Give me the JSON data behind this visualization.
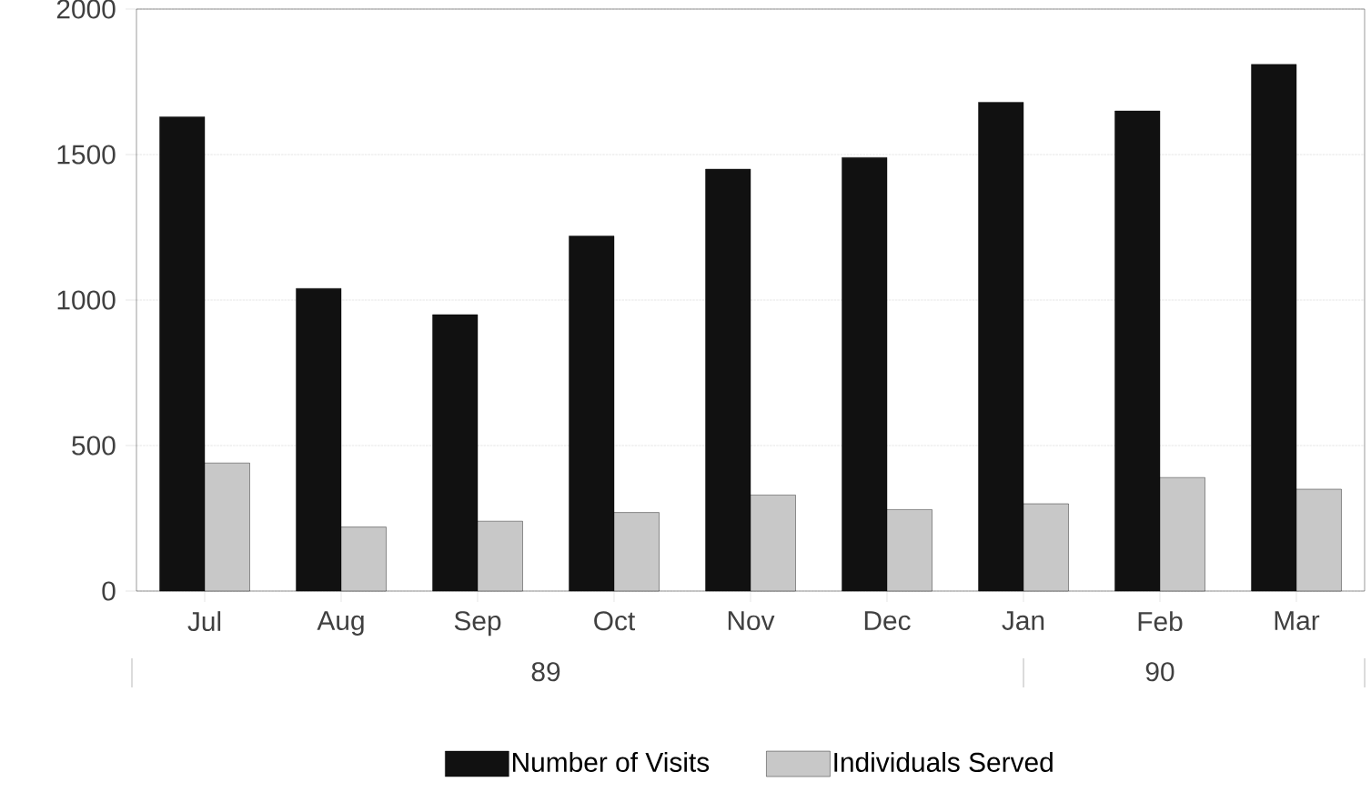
{
  "chart_data": {
    "type": "bar",
    "categories": [
      "Jul",
      "Aug",
      "Sep",
      "Oct",
      "Nov",
      "Dec",
      "Jan",
      "Feb",
      "Mar"
    ],
    "series": [
      {
        "name": "Number of Visits",
        "color": "#111111",
        "values": [
          1630,
          1040,
          950,
          1220,
          1450,
          1490,
          1680,
          1650,
          1810
        ]
      },
      {
        "name": "Individuals Served",
        "color": "#c8c8c8",
        "values": [
          440,
          220,
          240,
          270,
          330,
          280,
          300,
          390,
          350
        ]
      }
    ],
    "ylim": [
      0,
      2000
    ],
    "yticks": [
      0,
      500,
      1000,
      1500,
      2000
    ],
    "grid": "y",
    "legend": "bottom",
    "annotations": [
      "89",
      "90"
    ]
  }
}
